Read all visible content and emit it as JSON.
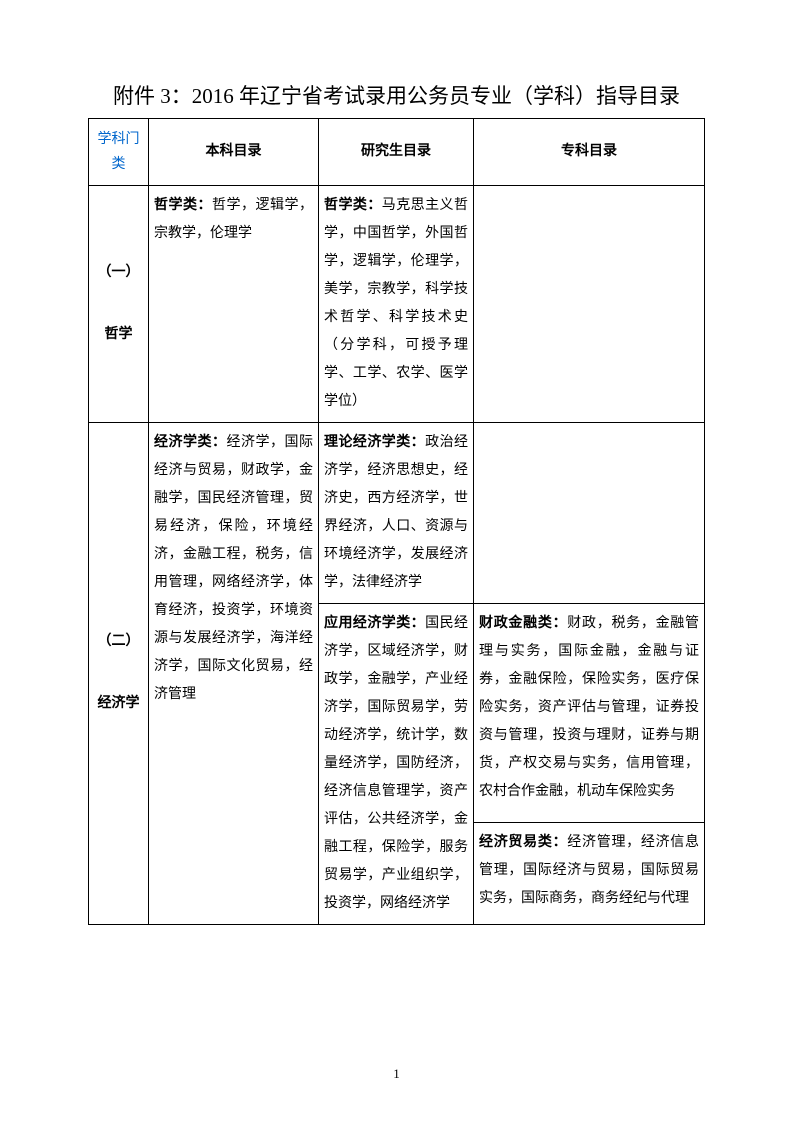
{
  "title": "附件 3：2016 年辽宁省考试录用公务员专业（学科）指导目录",
  "headers": {
    "category": "学科门类",
    "undergrad": "本科目录",
    "grad": "研究生目录",
    "junior": "专科目录"
  },
  "rows": {
    "philosophy": {
      "category_num": "（一）",
      "category_name": "哲学",
      "undergrad_label": "哲学类：",
      "undergrad_text": "哲学，逻辑学，宗教学，伦理学",
      "grad_label": "哲学类：",
      "grad_text": "马克思主义哲学，中国哲学，外国哲学，逻辑学，伦理学，美学，宗教学，科学技术哲学、科学技术史（分学科，可授予理学、工学、农学、医学学位）",
      "junior_text": ""
    },
    "economics": {
      "category_num": "（二）",
      "category_name": "经济学",
      "undergrad_label": "经济学类：",
      "undergrad_text": "经济学，国际经济与贸易，财政学，金融学，国民经济管理，贸易经济，保险，环境经济，金融工程，税务，信用管理，网络经济学，体育经济，投资学，环境资源与发展经济学，海洋经济学，国际文化贸易，经济管理",
      "grad1_label": "理论经济学类：",
      "grad1_text": "政治经济学，经济思想史，经济史，西方经济学，世界经济，人口、资源与环境经济学，发展经济学，法律经济学",
      "grad2_label": "应用经济学类：",
      "grad2_text": "国民经济学，区域经济学，财政学，金融学，产业经济学，国际贸易学，劳动经济学，统计学，数量经济学，国防经济，经济信息管理学，资产评估，公共经济学，金融工程，保险学，服务贸易学，产业组织学，投资学，网络经济学",
      "junior1_label": "财政金融类：",
      "junior1_text": "财政，税务，金融管理与实务，国际金融，金融与证券，金融保险，保险实务，医疗保险实务，资产评估与管理，证券投资与管理，投资与理财，证券与期货，产权交易与实务，信用管理，农村合作金融，机动车保险实务",
      "junior2_label": "经济贸易类：",
      "junior2_text": "经济管理，经济信息管理，国际经济与贸易，国际贸易实务，国际商务，商务经纪与代理"
    }
  },
  "page_number": "1"
}
